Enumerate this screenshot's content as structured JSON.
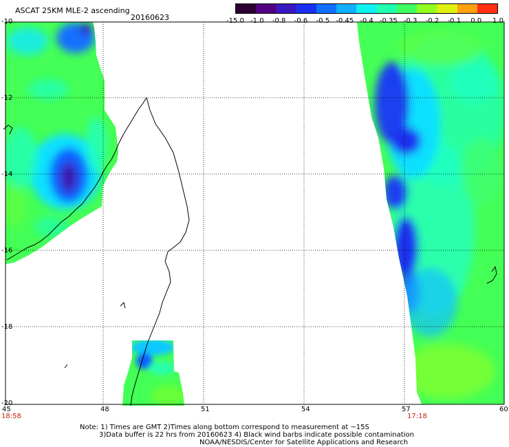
{
  "header": {
    "title": "ASCAT 25KM MLE-2 ascending",
    "date": "20160623"
  },
  "colorbar": {
    "labels": [
      "-15.0",
      "-1.0",
      "-0.8",
      "-0.6",
      "-0.5",
      "-0.45",
      "-0.4",
      "-0.35",
      "-0.3",
      "-0.2",
      "-0.1",
      "0.0",
      "1.0"
    ],
    "colors": [
      "#2a0030",
      "#500080",
      "#3a18c0",
      "#1a30f0",
      "#1070ff",
      "#10b0ff",
      "#10f0f0",
      "#20ffb0",
      "#40ff60",
      "#90ff20",
      "#e0f010",
      "#ffa010",
      "#ff3010"
    ]
  },
  "axes": {
    "x_ticks": [
      "45",
      "48",
      "51",
      "54",
      "57",
      "60"
    ],
    "y_ticks": [
      "-10",
      "-12",
      "-14",
      "-16",
      "-18",
      "-20"
    ]
  },
  "pass_times": {
    "left": "18:58",
    "right": "17:18"
  },
  "notes": [
    "Note: 1) Times are GMT 2)Times along bottom correspond to measurement at ~15S",
    "3)Data buffer is 22 hrs from 20160623 4) Black wind barbs indicate possible contamination",
    "NOAA/NESDIS/Center for Satellite Applications and Research"
  ]
}
